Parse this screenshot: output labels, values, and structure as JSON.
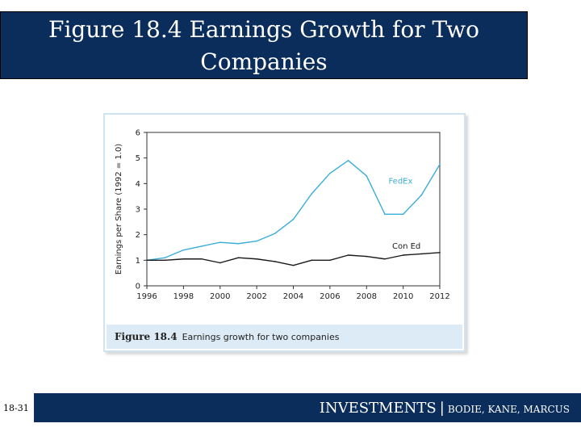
{
  "slide": {
    "title_line1": "Figure 18.4 Earnings Growth for Two",
    "title_line2": "Companies",
    "slide_number": "18-31",
    "footer_main": "INVESTMENTS",
    "footer_sep": "|",
    "footer_sub": "BODIE, KANE, MARCUS",
    "caption_label": "Figure 18.4",
    "caption_text": "Earnings growth for two companies"
  },
  "colors": {
    "navy": "#0b2d5c",
    "fedex": "#3aaed8",
    "coned": "#1a1a1a",
    "caption_bg": "#dcebf5"
  },
  "chart_data": {
    "type": "line",
    "xlabel": "",
    "ylabel": "Earnings per Share (1992 = 1.0)",
    "xlim": [
      1996,
      2012
    ],
    "ylim": [
      0,
      6
    ],
    "x_ticks": [
      "1996",
      "1998",
      "2000",
      "2002",
      "2004",
      "2006",
      "2008",
      "2010",
      "2012"
    ],
    "y_ticks": [
      "0",
      "1",
      "2",
      "3",
      "4",
      "5",
      "6"
    ],
    "grid": false,
    "series": [
      {
        "name": "FedEx",
        "x": [
          1996,
          1997,
          1998,
          1999,
          2000,
          2001,
          2002,
          2003,
          2004,
          2005,
          2006,
          2007,
          2008,
          2009,
          2010,
          2011,
          2012
        ],
        "values": [
          1.0,
          1.1,
          1.4,
          1.55,
          1.7,
          1.65,
          1.75,
          2.05,
          2.6,
          3.6,
          4.4,
          4.9,
          4.3,
          2.8,
          2.8,
          3.55,
          4.75
        ]
      },
      {
        "name": "Con Ed",
        "x": [
          1996,
          1997,
          1998,
          1999,
          2000,
          2001,
          2002,
          2003,
          2004,
          2005,
          2006,
          2007,
          2008,
          2009,
          2010,
          2011,
          2012
        ],
        "values": [
          1.0,
          1.0,
          1.05,
          1.05,
          0.9,
          1.1,
          1.05,
          0.95,
          0.8,
          1.0,
          1.0,
          1.2,
          1.15,
          1.05,
          1.2,
          1.25,
          1.3
        ]
      }
    ]
  }
}
